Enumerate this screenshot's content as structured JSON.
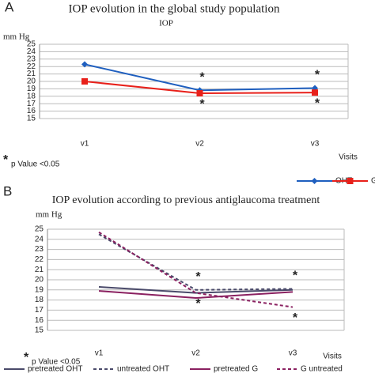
{
  "chart_data": [
    {
      "type": "line",
      "panel_label": "A",
      "title": "IOP evolution in the global study population",
      "subtitle": "IOP",
      "y_label": "mm Hg",
      "x_label": "Visits",
      "categories": [
        "v1",
        "v2",
        "v3"
      ],
      "series": [
        {
          "name": "OHT",
          "color": "#1f5fbf",
          "dash": "none",
          "marker": "diamond",
          "values": [
            22.3,
            18.8,
            19.1
          ]
        },
        {
          "name": "G",
          "color": "#e8201a",
          "dash": "none",
          "marker": "square",
          "values": [
            20.0,
            18.4,
            18.5
          ]
        }
      ],
      "ylim": [
        15,
        25
      ],
      "yticks": [
        15,
        16,
        17,
        18,
        19,
        20,
        21,
        22,
        23,
        24,
        25
      ],
      "grid": true,
      "annotations": [
        {
          "text": "*",
          "category": "v2",
          "series": "OHT",
          "position": "above"
        },
        {
          "text": "*",
          "category": "v3",
          "series": "OHT",
          "position": "above"
        },
        {
          "text": "*",
          "category": "v2",
          "series": "G",
          "position": "below"
        },
        {
          "text": "*",
          "category": "v3",
          "series": "G",
          "position": "below"
        }
      ],
      "footnote": {
        "symbol": "*",
        "text": "p Value <0.05"
      }
    },
    {
      "type": "line",
      "panel_label": "B",
      "title": "IOP evolution according to previous antiglaucoma treatment",
      "y_label": "mm Hg",
      "x_label": "Visits",
      "categories": [
        "v1",
        "v2",
        "v3"
      ],
      "series": [
        {
          "name": "pretreated OHT",
          "color": "#4a4a6a",
          "dash": "none",
          "marker": "none",
          "values": [
            19.3,
            18.7,
            19.0
          ]
        },
        {
          "name": "untreated OHT",
          "color": "#4a4a6a",
          "dash": "4 3",
          "marker": "none",
          "values": [
            24.5,
            19.0,
            19.1
          ]
        },
        {
          "name": "pretreated G",
          "color": "#8a2060",
          "dash": "none",
          "marker": "none",
          "values": [
            18.9,
            18.2,
            18.8
          ]
        },
        {
          "name": "G untreated",
          "color": "#8a2060",
          "dash": "4 3",
          "marker": "none",
          "values": [
            24.7,
            18.7,
            17.3
          ]
        }
      ],
      "ylim": [
        15,
        25
      ],
      "yticks": [
        15,
        16,
        17,
        18,
        19,
        20,
        21,
        22,
        23,
        24,
        25
      ],
      "grid": true,
      "annotations": [
        {
          "text": "*",
          "category": "v2",
          "series": "untreated OHT",
          "position": "above"
        },
        {
          "text": "*",
          "category": "v3",
          "series": "untreated OHT",
          "position": "above"
        },
        {
          "text": "*",
          "category": "v2",
          "series": "G untreated",
          "position": "below"
        },
        {
          "text": "*",
          "category": "v3",
          "series": "G untreated",
          "position": "below"
        }
      ],
      "footnote": {
        "symbol": "*",
        "text": "p Value <0.05"
      }
    }
  ]
}
